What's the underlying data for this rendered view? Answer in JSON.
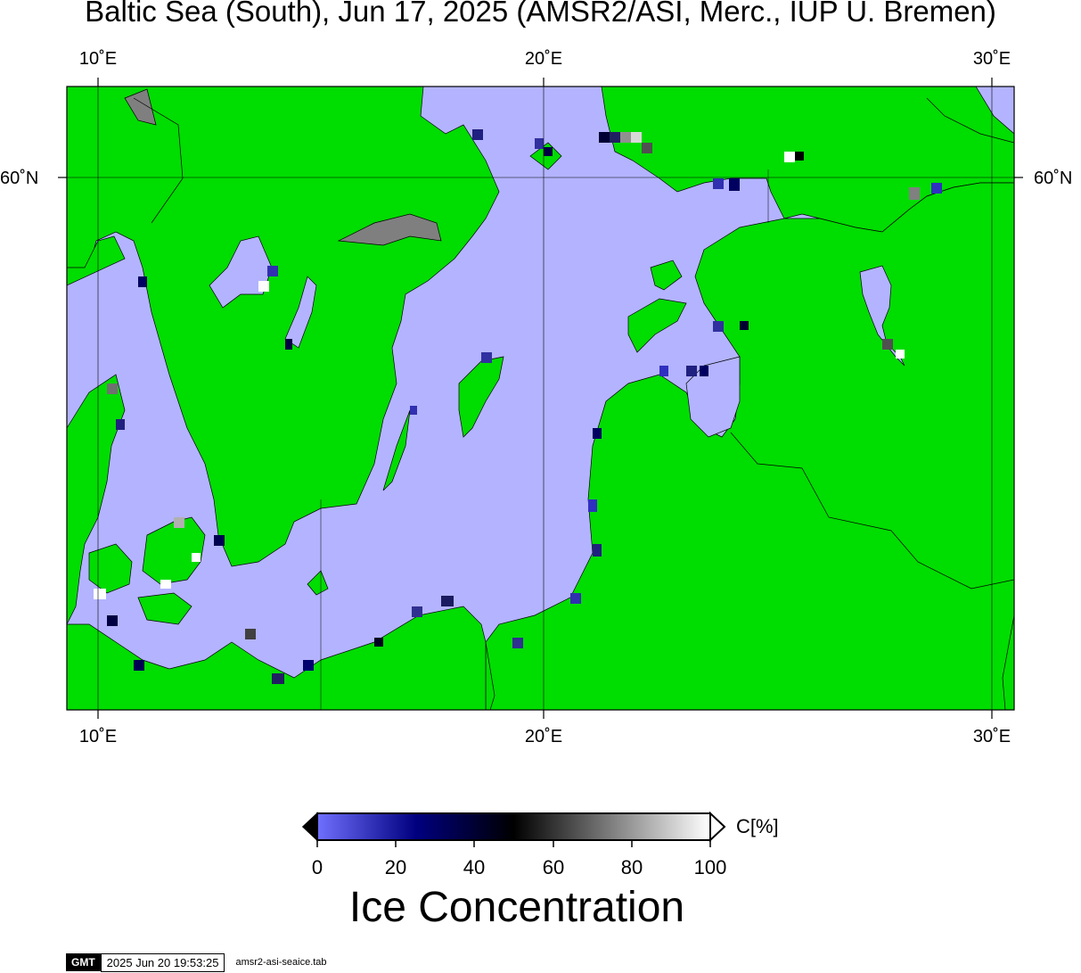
{
  "title": "Baltic Sea (South), Jun 17, 2025 (AMSR2/ASI, Merc., IUP U. Bremen)",
  "axes": {
    "lon_ticks": [
      "10˚E",
      "20˚E",
      "30˚E"
    ],
    "lat_ticks": [
      "60˚N"
    ],
    "lon_range": [
      9.3,
      30.5
    ],
    "lat_range": [
      53.6,
      60.9
    ]
  },
  "colors": {
    "land": "#00dd00",
    "ocean_open_water": "#b3b3ff",
    "coast_line": "#000000",
    "masked_land": "#7f7f7f"
  },
  "colorbar": {
    "title": "Ice Concentration",
    "unit": "C[%]",
    "ticks": [
      "0",
      "20",
      "40",
      "60",
      "80",
      "100"
    ],
    "range": [
      0,
      100
    ],
    "stops": [
      "#7070ff",
      "#000080",
      "#000000",
      "#7f7f7f",
      "#ffffff"
    ]
  },
  "footer": {
    "logo": "GMT",
    "timestamp": "2025 Jun 20 19:53:25",
    "script": "amsr2-asi-seaice.tab"
  }
}
